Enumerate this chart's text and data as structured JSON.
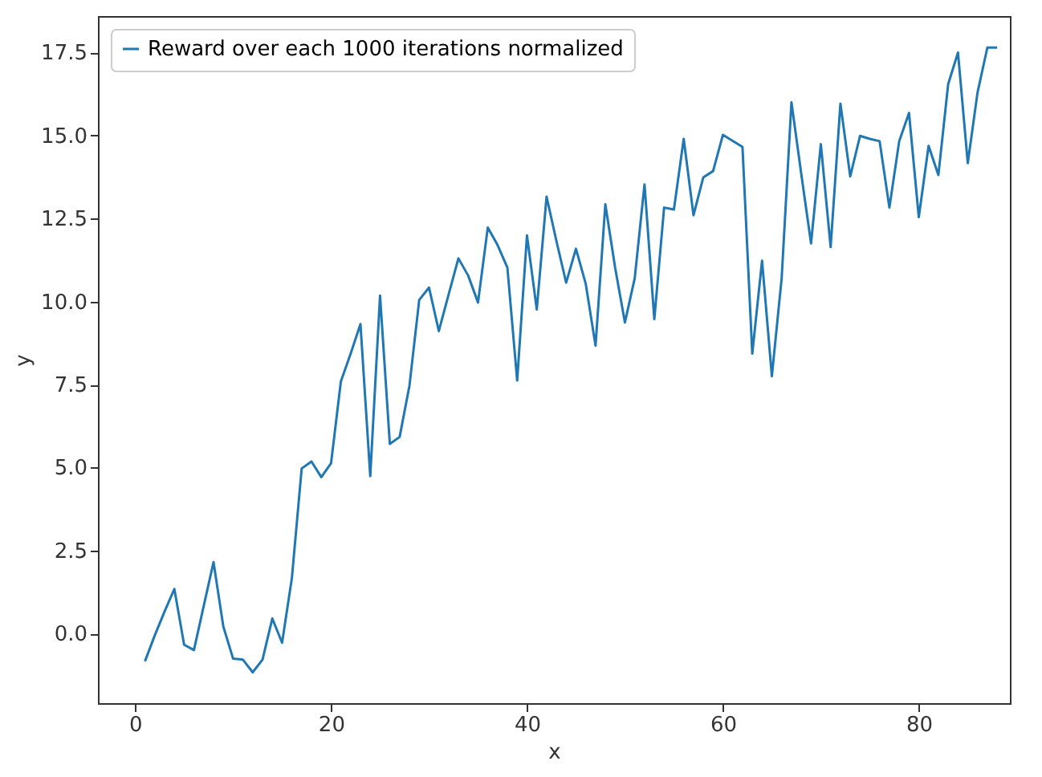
{
  "chart_data": {
    "type": "line",
    "xlabel": "x",
    "ylabel": "y",
    "legend": "top left",
    "marker": "none",
    "line_style": "solid",
    "grid": false,
    "xlim": [
      -3.8,
      89.3
    ],
    "xticks": [
      0,
      20,
      40,
      60,
      80
    ],
    "ylim": [
      -2.1,
      18.6
    ],
    "yticks": [
      {
        "value": 0,
        "label": "0.0"
      },
      {
        "value": 2.5,
        "label": "2.5"
      },
      {
        "value": 5,
        "label": "5.0"
      },
      {
        "value": 7.5,
        "label": "7.5"
      },
      {
        "value": 10,
        "label": "10.0"
      },
      {
        "value": 12.5,
        "label": "12.5"
      },
      {
        "value": 15,
        "label": "15.0"
      },
      {
        "value": 17.5,
        "label": "17.5"
      }
    ],
    "x": [
      1,
      2,
      3,
      4,
      5,
      6,
      7,
      8,
      9,
      10,
      11,
      12,
      13,
      14,
      15,
      16,
      17,
      18,
      19,
      20,
      21,
      22,
      23,
      24,
      25,
      26,
      27,
      28,
      29,
      30,
      31,
      32,
      33,
      34,
      35,
      36,
      37,
      38,
      39,
      40,
      41,
      42,
      43,
      44,
      45,
      46,
      47,
      48,
      49,
      50,
      51,
      52,
      53,
      54,
      55,
      56,
      57,
      58,
      59,
      60,
      61,
      62,
      63,
      64,
      65,
      66,
      67,
      68,
      69,
      70,
      71,
      72,
      73,
      74,
      75,
      76,
      77,
      78,
      79,
      80,
      81,
      82,
      83,
      84,
      85,
      86,
      87,
      88
    ],
    "series": [
      {
        "name": "Reward over each 1000 iterations normalized",
        "color": "#1f77b4",
        "values": [
          -0.84,
          -0.06,
          0.66,
          1.34,
          -0.34,
          -0.5,
          0.83,
          2.15,
          0.21,
          -0.76,
          -0.79,
          -1.17,
          -0.79,
          0.45,
          -0.28,
          1.67,
          4.97,
          5.18,
          4.71,
          5.13,
          7.59,
          8.43,
          9.32,
          4.74,
          10.18,
          5.71,
          5.92,
          7.46,
          10.05,
          10.42,
          9.11,
          10.21,
          11.3,
          10.78,
          9.97,
          12.23,
          11.7,
          11.02,
          7.62,
          11.99,
          9.76,
          13.16,
          11.83,
          10.57,
          11.59,
          10.53,
          8.67,
          12.93,
          11.02,
          9.37,
          10.7,
          13.53,
          9.47,
          12.83,
          12.77,
          14.9,
          12.6,
          13.74,
          13.93,
          15.02,
          14.84,
          14.66,
          8.43,
          11.23,
          7.75,
          10.7,
          16.0,
          13.85,
          11.75,
          14.74,
          11.64,
          15.96,
          13.77,
          14.99,
          14.9,
          14.83,
          12.83,
          14.83,
          15.68,
          12.54,
          14.69,
          13.81,
          16.55,
          17.5,
          14.17,
          16.3,
          17.65,
          17.65
        ]
      }
    ]
  }
}
